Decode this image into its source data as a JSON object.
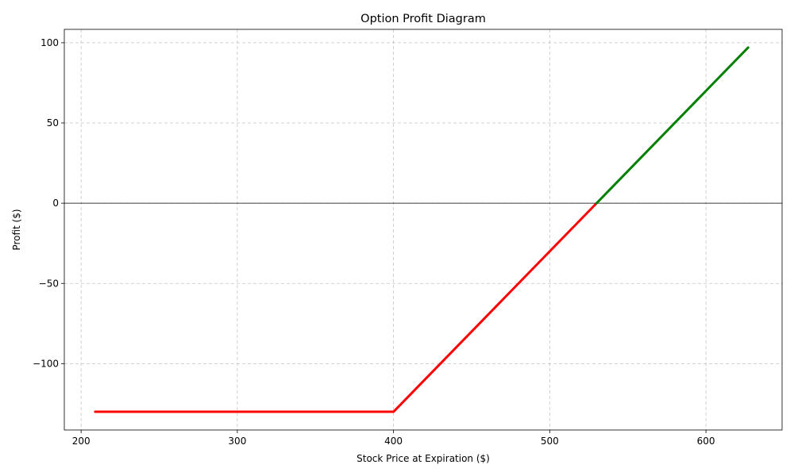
{
  "chart_data": {
    "type": "line",
    "title": "Option Profit Diagram",
    "xlabel": "Stock Price at Expiration ($)",
    "ylabel": "Profit ($)",
    "xlim": [
      189.25,
      648.75
    ],
    "ylim": [
      -141.35,
      108.35
    ],
    "xticks": [
      200,
      300,
      400,
      500,
      600
    ],
    "yticks": [
      -100,
      -50,
      0,
      50,
      100
    ],
    "xtick_labels": [
      "200",
      "300",
      "400",
      "500",
      "600"
    ],
    "ytick_labels": [
      "−100",
      "−50",
      "0",
      "50",
      "100"
    ],
    "grid": true,
    "zero_line": 0,
    "series": [
      {
        "color": "#ff0000",
        "x": [
          209,
          400,
          530
        ],
        "y": [
          -130,
          -130,
          0
        ]
      },
      {
        "color": "#008000",
        "x": [
          530,
          627
        ],
        "y": [
          0,
          97
        ]
      }
    ]
  }
}
